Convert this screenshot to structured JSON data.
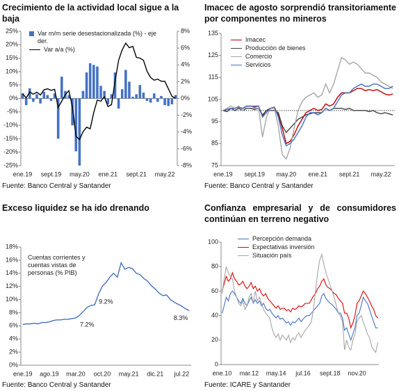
{
  "chart_data": [
    {
      "type": "combo",
      "title": "Crecimiento de la actividad local sigue a la baja",
      "source": "Fuente: Banco Central y Santander",
      "legend": "upper left",
      "categories": [
        "ene.19",
        null,
        null,
        null,
        null,
        null,
        null,
        null,
        "sept.19",
        null,
        null,
        null,
        null,
        null,
        null,
        null,
        "may.20",
        null,
        null,
        null,
        null,
        null,
        null,
        null,
        "ene.21",
        null,
        null,
        null,
        null,
        null,
        null,
        null,
        "sept.21",
        null,
        null,
        null,
        null,
        null,
        null,
        null,
        "may.22",
        null,
        null,
        null
      ],
      "ylim": [
        -25,
        25
      ],
      "yticks": [
        {
          "value": -25,
          "label": "-25%"
        },
        {
          "value": -20,
          "label": "-20%"
        },
        {
          "value": -15,
          "label": "-15%"
        },
        {
          "value": -10,
          "label": "-10%"
        },
        {
          "value": -5,
          "label": "-5%"
        },
        {
          "value": 0,
          "label": "0%"
        },
        {
          "value": 5,
          "label": "5%"
        },
        {
          "value": 10,
          "label": "10%"
        },
        {
          "value": 15,
          "label": "15%"
        },
        {
          "value": 20,
          "label": "20%"
        },
        {
          "value": 25,
          "label": "25%"
        }
      ],
      "y2lim": [
        -8,
        8
      ],
      "y2ticks": [
        {
          "value": -8,
          "label": "-8%"
        },
        {
          "value": -6,
          "label": "-6%"
        },
        {
          "value": -4,
          "label": "-4%"
        },
        {
          "value": -2,
          "label": "-2%"
        },
        {
          "value": 0,
          "label": "0%"
        },
        {
          "value": 2,
          "label": "2%"
        },
        {
          "value": 4,
          "label": "4%"
        },
        {
          "value": 6,
          "label": "6%"
        },
        {
          "value": 8,
          "label": "8%"
        }
      ],
      "series": [
        {
          "name": "Var m/m serie desestacionalizada (%) - eje der.",
          "type": "bar",
          "axis": "y2",
          "color": "#4472c4",
          "values": [
            0.6,
            -0.8,
            1.2,
            -0.4,
            0.5,
            -0.6,
            0.8,
            0.4,
            -0.3,
            0.6,
            -4.8,
            2.6,
            0.9,
            0.4,
            -3.2,
            -6.3,
            -8.0,
            0.9,
            3.1,
            4.2,
            4.0,
            3.8,
            1.5,
            0.9,
            -0.7,
            0.5,
            3.1,
            -1.2,
            1.1,
            3.4,
            2.0,
            0.2,
            0.5,
            1.6,
            0.7,
            -0.3,
            -0.5,
            0.6,
            -0.4,
            0.3,
            -0.8,
            -0.9,
            -0.7,
            0.4
          ]
        },
        {
          "name": "Var a/a (%)",
          "type": "line",
          "axis": "y",
          "color": "#000000",
          "values": [
            1.8,
            0.2,
            2.4,
            1.6,
            2.3,
            1.3,
            3.2,
            3.6,
            3.0,
            3.4,
            -3.4,
            -1.0,
            1.4,
            2.9,
            -3.1,
            -14.1,
            -15.3,
            -12.4,
            -10.7,
            -11.3,
            -5.3,
            -0.6,
            -1.0,
            0.6,
            -3.0,
            -2.3,
            6.4,
            14.2,
            18.1,
            20.6,
            18.9,
            19.4,
            15.3,
            15.0,
            14.2,
            10.1,
            7.8,
            6.8,
            7.2,
            6.4,
            6.4,
            3.6,
            0.8,
            0.0
          ]
        }
      ]
    },
    {
      "type": "line",
      "title": "Imacec de agosto sorprendió transitoriamente por componentes no mineros",
      "source": "Fuente: Banco Central y Santander",
      "legend": "upper left",
      "reference_line": 100,
      "categories": [
        "ene.19",
        null,
        null,
        null,
        null,
        null,
        null,
        null,
        "sept.19",
        null,
        null,
        null,
        null,
        null,
        null,
        null,
        "may.20",
        null,
        null,
        null,
        null,
        null,
        null,
        null,
        "ene.21",
        null,
        null,
        null,
        null,
        null,
        null,
        null,
        "sept.21",
        null,
        null,
        null,
        null,
        null,
        null,
        null,
        "may.22",
        null,
        null,
        null
      ],
      "ylim": [
        75,
        135
      ],
      "yticks": [
        75,
        85,
        95,
        105,
        115,
        125,
        135
      ],
      "series": [
        {
          "name": "Imacec",
          "color": "#c00000",
          "values": [
            100,
            100.5,
            101,
            101,
            101.5,
            101,
            102,
            102,
            101.5,
            102,
            97.5,
            100,
            101,
            101.5,
            98,
            92,
            85,
            86,
            89,
            93,
            96,
            99,
            100,
            101,
            100,
            100.5,
            103,
            102,
            103,
            106,
            108,
            108,
            108,
            109,
            110,
            110,
            109,
            109.5,
            109,
            109.5,
            108.5,
            107.5,
            107,
            107.5
          ]
        },
        {
          "name": "Producción de bienes",
          "color": "#404040",
          "values": [
            100,
            99.5,
            101,
            100,
            101,
            100,
            101,
            101,
            100.5,
            101,
            98,
            100,
            100,
            100,
            99,
            93,
            90,
            92,
            94,
            96,
            97,
            98,
            98.5,
            99,
            99,
            99,
            101,
            100,
            101,
            101,
            101,
            100.5,
            101,
            100,
            100,
            100,
            100,
            99.5,
            100,
            99,
            98.5,
            99,
            98.5,
            98
          ]
        },
        {
          "name": "Comercio",
          "color": "#a6a6a6",
          "values": [
            100,
            101,
            102,
            101,
            102,
            100,
            102,
            102,
            101,
            101,
            88,
            97,
            101,
            101,
            93,
            80,
            78,
            83,
            92,
            100,
            104,
            106,
            107,
            108,
            106,
            107,
            112,
            108,
            112,
            118,
            124,
            123,
            121,
            122,
            121,
            119,
            117,
            117,
            116,
            115,
            113,
            112,
            111,
            110
          ]
        },
        {
          "name": "Servicios",
          "color": "#4472c4",
          "values": [
            100,
            100.5,
            101,
            101,
            101.5,
            101,
            102,
            102,
            102,
            102,
            97,
            99,
            101,
            101.5,
            97,
            89,
            84,
            85,
            87,
            90,
            93,
            97,
            99,
            99,
            98,
            99,
            101,
            100,
            101,
            104,
            107,
            108,
            108,
            110,
            111,
            112,
            111,
            111,
            112,
            112,
            111,
            110,
            110,
            111
          ]
        }
      ]
    },
    {
      "type": "line",
      "title": "Exceso liquidez se ha ido drenando",
      "source": "Fuente: Banco Central y Santander",
      "legend": "upper left",
      "legend_marker": false,
      "categories": [
        "ene.19",
        null,
        null,
        null,
        null,
        null,
        null,
        "ago.19",
        null,
        null,
        null,
        null,
        null,
        null,
        "mar.20",
        null,
        null,
        null,
        null,
        null,
        null,
        "oct.20",
        null,
        null,
        null,
        null,
        null,
        null,
        "may.21",
        null,
        null,
        null,
        null,
        null,
        null,
        "dic.21",
        null,
        null,
        null,
        null,
        null,
        null,
        "jul.22",
        null,
        null
      ],
      "ylim": [
        0,
        18
      ],
      "yticks": [
        {
          "value": 0,
          "label": "0%"
        },
        {
          "value": 2,
          "label": "2%"
        },
        {
          "value": 4,
          "label": "4%"
        },
        {
          "value": 6,
          "label": "6%"
        },
        {
          "value": 8,
          "label": "8%"
        },
        {
          "value": 10,
          "label": "10%"
        },
        {
          "value": 12,
          "label": "12%"
        },
        {
          "value": 14,
          "label": "14%"
        },
        {
          "value": 16,
          "label": "16%"
        },
        {
          "value": 18,
          "label": "18%"
        }
      ],
      "series": [
        {
          "name": "Cuentas corrientes y cuentas vistas de personas (% PIB)",
          "color": "#4472c4",
          "values": [
            6.2,
            6.3,
            6.3,
            6.4,
            6.3,
            6.5,
            6.5,
            6.6,
            6.8,
            6.9,
            6.9,
            7.0,
            7.0,
            7.1,
            7.2,
            7.6,
            8.2,
            8.8,
            9.1,
            9.2,
            10.8,
            12.0,
            12.6,
            13.4,
            14.0,
            13.4,
            15.6,
            14.6,
            14.9,
            14.7,
            14.0,
            13.8,
            13.2,
            12.8,
            12.1,
            11.6,
            11.0,
            10.6,
            10.7,
            10.0,
            9.6,
            9.3,
            9.0,
            8.6,
            8.3
          ],
          "value_labels": [
            null,
            null,
            null,
            null,
            null,
            null,
            null,
            null,
            null,
            null,
            null,
            null,
            null,
            null,
            "7.2%",
            null,
            null,
            null,
            null,
            "9.2%",
            null,
            null,
            null,
            null,
            null,
            null,
            null,
            null,
            null,
            null,
            null,
            null,
            null,
            null,
            null,
            null,
            null,
            null,
            null,
            null,
            null,
            null,
            null,
            null,
            "8.3%"
          ]
        }
      ]
    },
    {
      "type": "line",
      "title": "Confianza empresarial y de consumidores continúan en terreno negativo",
      "source": "Fuente: ICARE y Santander",
      "legend": "upper left",
      "categories": [
        "ene.10",
        null,
        null,
        null,
        null,
        null,
        null,
        null,
        null,
        null,
        null,
        null,
        null,
        "mar.12",
        null,
        null,
        null,
        null,
        null,
        null,
        null,
        null,
        null,
        null,
        null,
        null,
        "may.14",
        null,
        null,
        null,
        null,
        null,
        null,
        null,
        null,
        null,
        null,
        null,
        null,
        "jul.16",
        null,
        null,
        null,
        null,
        null,
        null,
        null,
        null,
        null,
        null,
        null,
        null,
        "sept.18",
        null,
        null,
        null,
        null,
        null,
        null,
        null,
        null,
        null,
        null,
        null,
        null,
        "nov.20",
        null,
        null,
        null,
        null,
        null,
        null,
        null,
        null,
        null,
        null
      ],
      "ylim": [
        0,
        100
      ],
      "yticks": [
        0,
        20,
        40,
        60,
        80,
        100
      ],
      "series": [
        {
          "name": "Percepción demanda",
          "color": "#4472c4",
          "values": [
            42,
            48,
            55,
            52,
            58,
            60,
            58,
            55,
            52,
            50,
            54,
            50,
            48,
            52,
            55,
            50,
            53,
            50,
            52,
            48,
            50,
            46,
            44,
            45,
            42,
            40,
            38,
            40,
            37,
            38,
            36,
            34,
            35,
            32,
            35,
            34,
            36,
            38,
            35,
            37,
            39,
            40,
            40,
            42,
            44,
            46,
            48,
            50,
            56,
            58,
            54,
            52,
            50,
            49,
            47,
            45,
            42,
            42,
            38,
            28,
            30,
            25,
            20,
            25,
            30,
            40,
            42,
            48,
            55,
            52,
            50,
            45,
            40,
            35,
            30,
            30
          ]
        },
        {
          "name": "Expectativas inversión",
          "color": "#e00000",
          "values": [
            60,
            66,
            72,
            68,
            70,
            75,
            70,
            68,
            65,
            66,
            68,
            64,
            62,
            64,
            67,
            62,
            64,
            60,
            62,
            58,
            56,
            58,
            54,
            52,
            50,
            48,
            46,
            48,
            45,
            46,
            46,
            44,
            45,
            43,
            46,
            45,
            46,
            48,
            47,
            48,
            50,
            50,
            50,
            53,
            56,
            58,
            62,
            64,
            68,
            70,
            65,
            63,
            62,
            60,
            58,
            57,
            54,
            52,
            50,
            42,
            42,
            38,
            30,
            34,
            40,
            50,
            52,
            56,
            60,
            58,
            55,
            52,
            48,
            45,
            40,
            38
          ]
        },
        {
          "name": "Situación país",
          "color": "#a6a6a6",
          "values": [
            58,
            70,
            80,
            75,
            72,
            70,
            60,
            55,
            50,
            48,
            52,
            45,
            48,
            55,
            58,
            50,
            60,
            52,
            55,
            50,
            45,
            42,
            40,
            38,
            30,
            25,
            22,
            25,
            20,
            24,
            22,
            20,
            24,
            18,
            22,
            20,
            24,
            26,
            22,
            25,
            28,
            30,
            32,
            35,
            45,
            60,
            75,
            85,
            90,
            82,
            75,
            70,
            65,
            60,
            55,
            48,
            42,
            40,
            35,
            12,
            20,
            14,
            12,
            20,
            25,
            35,
            38,
            40,
            35,
            30,
            25,
            22,
            15,
            12,
            10,
            18
          ]
        }
      ]
    }
  ]
}
